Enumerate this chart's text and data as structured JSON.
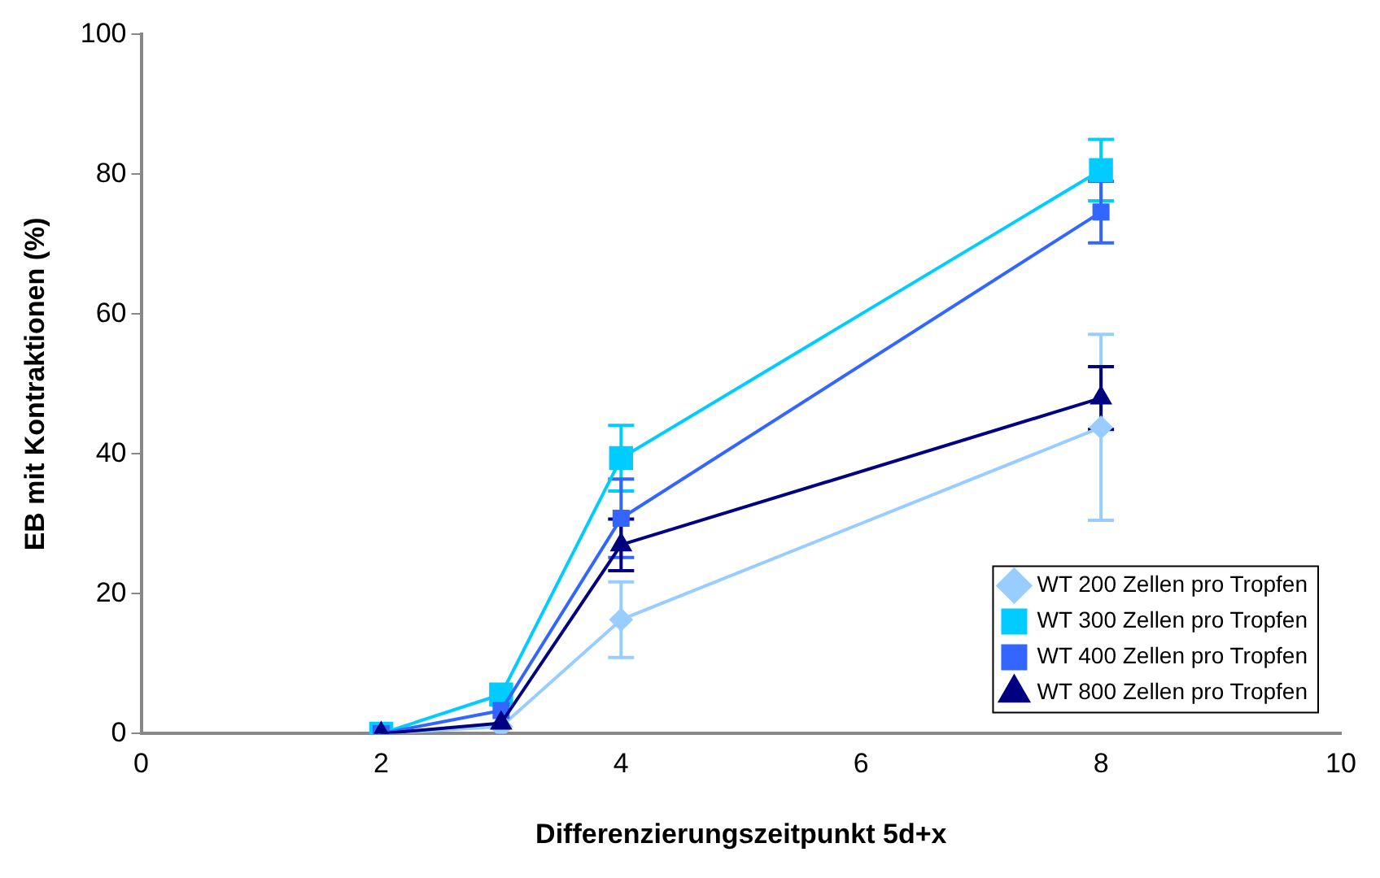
{
  "chart_data": {
    "type": "line",
    "xlabel": "Differenzierungszeitpunkt 5d+x",
    "ylabel": "EB mit Kontraktionen (%)",
    "x": [
      2,
      3,
      4,
      8
    ],
    "xlim": [
      0,
      10
    ],
    "xticks": [
      0,
      2,
      4,
      6,
      8,
      10
    ],
    "ylim": [
      0,
      100
    ],
    "yticks": [
      0,
      20,
      40,
      60,
      80,
      100
    ],
    "grid": false,
    "legend": "bottom right",
    "series": [
      {
        "name": "WT 200 Zellen pro Tropfen",
        "color": "#99ccff",
        "marker": "diamond",
        "values": [
          0,
          1,
          16.3,
          43.8
        ],
        "errors": [
          null,
          null,
          5.4,
          13.3
        ]
      },
      {
        "name": "WT 300 Zellen pro Tropfen",
        "color": "#00ccff",
        "marker": "square",
        "values": [
          0,
          5.6,
          39.4,
          80.6
        ],
        "errors": [
          null,
          null,
          4.7,
          4.4
        ]
      },
      {
        "name": "WT 400 Zellen pro Tropfen",
        "color": "#3366ff",
        "marker": "square",
        "values": [
          0,
          3.3,
          30.8,
          74.6
        ],
        "errors": [
          null,
          null,
          5.6,
          4.4
        ]
      },
      {
        "name": "WT 800 Zellen pro Tropfen",
        "color": "#000080",
        "marker": "triangle",
        "values": [
          0,
          1.5,
          27,
          48
        ],
        "errors": [
          null,
          null,
          3.7,
          4.5
        ]
      }
    ]
  }
}
